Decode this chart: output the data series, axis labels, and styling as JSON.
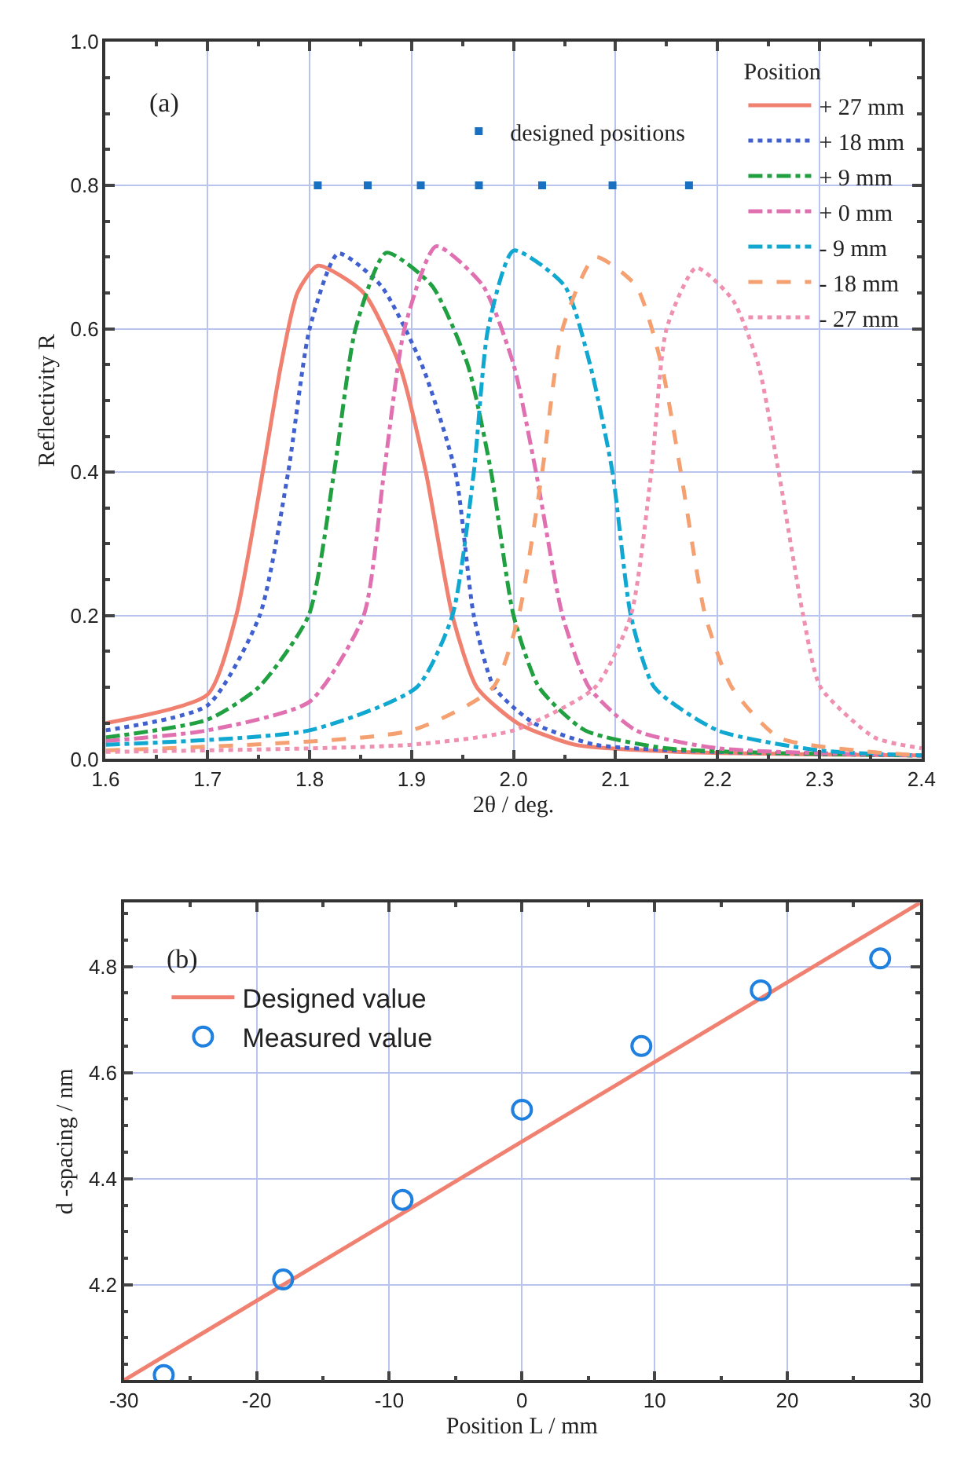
{
  "chart_data": [
    {
      "type": "line",
      "xlabel": "2θ / deg.",
      "ylabel": "Reflectivity R",
      "legend_title": "Position",
      "legend": "top right",
      "grid": true,
      "marker": "none",
      "xlim": [
        1.6,
        2.4
      ],
      "xticks": [
        1.6,
        1.7,
        1.8,
        1.9,
        {
          "value": 2,
          "label": "2.0"
        },
        2.1,
        2.2,
        2.3,
        2.4
      ],
      "ylim": [
        0,
        1
      ],
      "yticks": [
        {
          "value": 0,
          "label": "0.0"
        },
        0.2,
        0.4,
        0.6,
        0.8,
        {
          "value": 1,
          "label": "1.0"
        }
      ],
      "annotations": [
        "(a)"
      ],
      "series": [
        {
          "name": "+ 27 mm",
          "color": "#f08070",
          "line_style": "solid",
          "x": [
            1.6,
            1.7,
            1.728,
            1.754,
            1.772,
            1.788,
            1.808,
            1.853,
            1.888,
            1.914,
            1.94,
            1.964,
            2.004,
            2.06,
            2.16,
            2.4
          ],
          "values": [
            0.05,
            0.09,
            0.2,
            0.4,
            0.55,
            0.65,
            0.688,
            0.65,
            0.55,
            0.4,
            0.2,
            0.1,
            0.05,
            0.02,
            0.01,
            0.005
          ]
        },
        {
          "name": "+ 18 mm",
          "color": "#4060d0",
          "line_style": "dotted",
          "x": [
            1.6,
            1.7,
            1.751,
            1.779,
            1.8,
            1.828,
            1.87,
            1.91,
            1.943,
            1.961,
            1.981,
            2.02,
            2.08,
            2.2,
            2.4
          ],
          "values": [
            0.04,
            0.075,
            0.2,
            0.4,
            0.6,
            0.705,
            0.66,
            0.55,
            0.4,
            0.2,
            0.1,
            0.05,
            0.02,
            0.01,
            0.005
          ]
        },
        {
          "name": "+ 9 mm",
          "color": "#20a040",
          "line_style": "dashdot",
          "x": [
            1.6,
            1.7,
            1.75,
            1.799,
            1.824,
            1.845,
            1.875,
            1.92,
            1.955,
            1.978,
            2.0,
            2.025,
            2.07,
            2.15,
            2.4
          ],
          "values": [
            0.03,
            0.055,
            0.1,
            0.2,
            0.4,
            0.6,
            0.706,
            0.66,
            0.55,
            0.4,
            0.2,
            0.1,
            0.04,
            0.015,
            0.005
          ]
        },
        {
          "name": "+ 0 mm",
          "color": "#e070b0",
          "line_style": "dashdot",
          "x": [
            1.6,
            1.7,
            1.8,
            1.853,
            1.873,
            1.893,
            1.924,
            1.97,
            2.0,
            2.022,
            2.048,
            2.074,
            2.12,
            2.2,
            2.4
          ],
          "values": [
            0.025,
            0.04,
            0.08,
            0.2,
            0.4,
            0.6,
            0.715,
            0.66,
            0.55,
            0.4,
            0.2,
            0.1,
            0.04,
            0.015,
            0.005
          ]
        },
        {
          "name": "- 9 mm",
          "color": "#10a8d0",
          "line_style": "dashdot",
          "x": [
            1.6,
            1.8,
            1.905,
            1.94,
            1.961,
            1.975,
            2.0,
            2.05,
            2.075,
            2.097,
            2.115,
            2.138,
            2.2,
            2.3,
            2.4
          ],
          "values": [
            0.02,
            0.04,
            0.1,
            0.2,
            0.4,
            0.6,
            0.709,
            0.66,
            0.55,
            0.4,
            0.2,
            0.1,
            0.04,
            0.012,
            0.005
          ]
        },
        {
          "name": "- 18 mm",
          "color": "#f4a070",
          "line_style": "dashed",
          "x": [
            1.6,
            1.9,
            1.98,
            2.005,
            2.028,
            2.048,
            2.08,
            2.12,
            2.145,
            2.164,
            2.188,
            2.214,
            2.26,
            2.35,
            2.4
          ],
          "values": [
            0.012,
            0.04,
            0.1,
            0.2,
            0.4,
            0.6,
            0.7,
            0.66,
            0.55,
            0.4,
            0.2,
            0.1,
            0.03,
            0.01,
            0.005
          ]
        },
        {
          "name": "- 27 mm",
          "color": "#f090b0",
          "line_style": "dotted",
          "x": [
            1.6,
            1.9,
            2.0,
            2.08,
            2.115,
            2.135,
            2.15,
            2.179,
            2.215,
            2.24,
            2.26,
            2.284,
            2.301,
            2.354,
            2.4
          ],
          "values": [
            0.01,
            0.02,
            0.04,
            0.1,
            0.2,
            0.4,
            0.6,
            0.685,
            0.64,
            0.55,
            0.4,
            0.2,
            0.1,
            0.03,
            0.015
          ]
        },
        {
          "name": "designed positions",
          "type": "scatter",
          "marker": "square",
          "color": "#1a70c0",
          "x": [
            1.808,
            1.857,
            1.909,
            1.966,
            2.028,
            2.097,
            2.172
          ],
          "values": [
            0.8,
            0.8,
            0.8,
            0.8,
            0.8,
            0.8,
            0.8
          ]
        }
      ]
    },
    {
      "type": "line",
      "xlabel": "Position L / mm",
      "ylabel": "d -spacing / nm",
      "legend": "top left",
      "grid": true,
      "xlim": [
        -30,
        30
      ],
      "xticks": [
        -30,
        -20,
        -10,
        0,
        10,
        20,
        30
      ],
      "ylim": [
        4.02,
        4.92
      ],
      "yticks": [
        4.2,
        4.4,
        4.6,
        4.8
      ],
      "annotations": [
        "(b)"
      ],
      "series": [
        {
          "name": "Designed value",
          "color": "#f08070",
          "line_style": "solid",
          "marker": "none",
          "x": [
            -30,
            30
          ],
          "values": [
            4.02,
            4.92
          ]
        },
        {
          "name": "Measured value",
          "type": "scatter",
          "marker": "circle",
          "color": "#2080e0",
          "x": [
            -27,
            -18,
            -9,
            0,
            9,
            18,
            27
          ],
          "values": [
            4.03,
            4.21,
            4.36,
            4.53,
            4.65,
            4.755,
            4.815
          ]
        }
      ]
    }
  ]
}
